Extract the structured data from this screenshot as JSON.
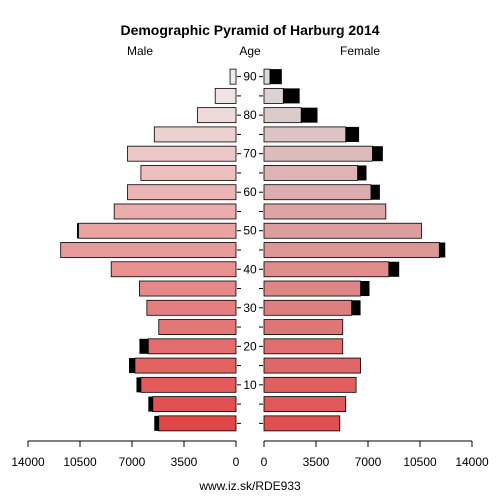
{
  "chart_data": {
    "type": "bar",
    "title": "Demographic Pyramid of Harburg 2014",
    "left_label": "Male",
    "center_label": "Age",
    "right_label": "Female",
    "footer": "www.iz.sk/RDE933",
    "xlim": [
      0,
      14000
    ],
    "x_ticks_left": [
      "14000",
      "10500",
      "7000",
      "3500",
      "0"
    ],
    "x_ticks_right": [
      "0",
      "3500",
      "7000",
      "10500",
      "14000"
    ],
    "x_tick_values": [
      14000,
      10500,
      7000,
      3500,
      0
    ],
    "age_ticks": [
      "90",
      "80",
      "70",
      "60",
      "50",
      "40",
      "30",
      "20",
      "10"
    ],
    "age_groups": [
      "0-4",
      "5-9",
      "10-14",
      "15-19",
      "20-24",
      "25-29",
      "30-34",
      "35-39",
      "40-44",
      "45-49",
      "50-54",
      "55-59",
      "60-64",
      "65-69",
      "70-74",
      "75-79",
      "80-84",
      "85-89",
      "90+"
    ],
    "series": [
      {
        "name": "Male",
        "values": [
          5200,
          5600,
          6400,
          6800,
          5900,
          5200,
          6000,
          6500,
          8400,
          11800,
          10600,
          8200,
          7300,
          6400,
          7300,
          5500,
          2600,
          1400,
          400
        ]
      },
      {
        "name": "Male foreign",
        "values": [
          300,
          300,
          300,
          400,
          600,
          0,
          0,
          0,
          0,
          0,
          100,
          0,
          0,
          0,
          0,
          0,
          0,
          0,
          0
        ]
      },
      {
        "name": "Female",
        "values": [
          5100,
          5500,
          6200,
          6500,
          5300,
          5300,
          5900,
          6500,
          8400,
          11800,
          10600,
          8200,
          7200,
          6300,
          7300,
          5500,
          2500,
          1300,
          400
        ]
      },
      {
        "name": "Female foreign",
        "values": [
          0,
          0,
          0,
          0,
          0,
          0,
          600,
          600,
          700,
          400,
          0,
          0,
          600,
          600,
          700,
          900,
          1100,
          1100,
          800
        ]
      }
    ],
    "colors": {
      "male_young": "#e04848",
      "male_old": "#f0ecec",
      "female_young": "#e05050",
      "female_old": "#dcdada",
      "foreign": "#000000",
      "outline": "#000000"
    }
  }
}
